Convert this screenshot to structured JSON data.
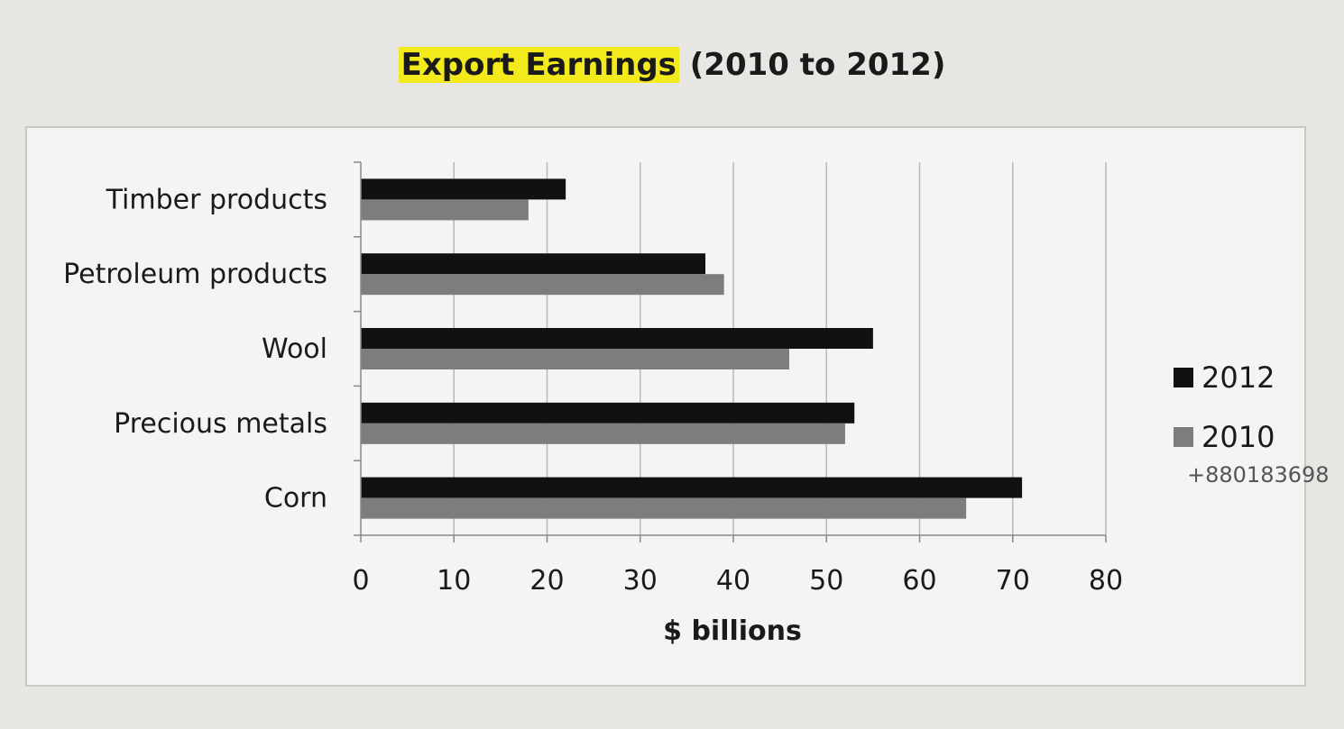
{
  "title": {
    "highlighted": "Export Earnings",
    "rest": "(2010 to 2012)"
  },
  "colors": {
    "series_2012": "#111111",
    "series_2010": "#7d7d7d",
    "gridline": "#b9b9b9",
    "highlight": "#f2ea1c"
  },
  "annotation": "+880183698",
  "chart_data": {
    "type": "bar",
    "orientation": "horizontal",
    "title": "Export Earnings (2010 to 2012)",
    "xlabel": "$ billions",
    "ylabel": "",
    "xlim": [
      0,
      80
    ],
    "xticks": [
      0,
      10,
      20,
      30,
      40,
      50,
      60,
      70,
      80
    ],
    "grid": "vertical",
    "legend_position": "right",
    "categories": [
      "Timber products",
      "Petroleum products",
      "Wool",
      "Precious metals",
      "Corn"
    ],
    "series": [
      {
        "name": "2012",
        "values": [
          22,
          37,
          55,
          53,
          71
        ]
      },
      {
        "name": "2010",
        "values": [
          18,
          39,
          46,
          52,
          65
        ]
      }
    ]
  }
}
